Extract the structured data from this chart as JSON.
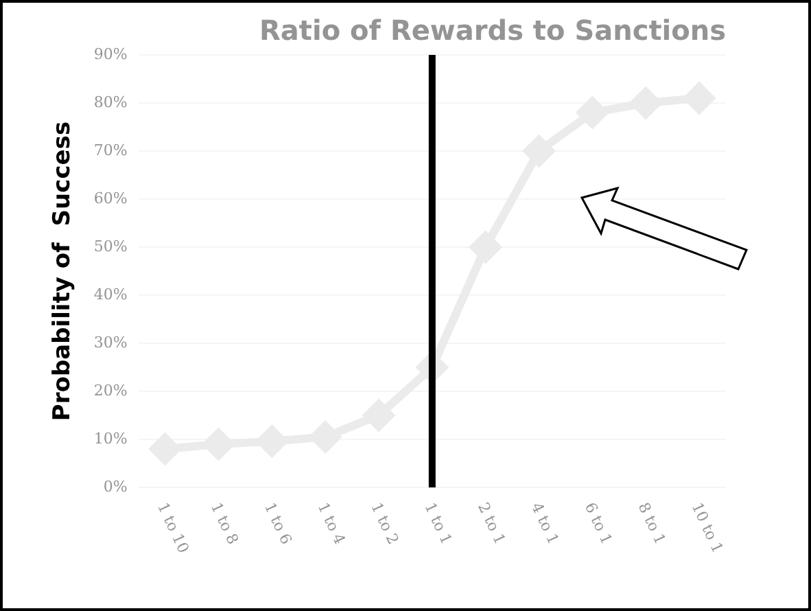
{
  "chart_data": {
    "type": "line",
    "title": "Ratio of Rewards to Sanctions",
    "ylabel": "Probability of  Success",
    "categories": [
      "1 to 10",
      "1 to 8",
      "1 to 6",
      "1 to 4",
      "1 to 2",
      "1 to 1",
      "2 to 1",
      "4 to 1",
      "6 to 1",
      "8 to 1",
      "10 to 1"
    ],
    "series": [
      {
        "color": "#ebebeb",
        "values": [
          8,
          9,
          9.6,
          10.5,
          15,
          25,
          50,
          70,
          78,
          80,
          81
        ]
      }
    ],
    "ylim": [
      0,
      90
    ],
    "yticks": [
      {
        "value": 0,
        "label": "0%"
      },
      {
        "value": 10,
        "label": "10%"
      },
      {
        "value": 20,
        "label": "20%"
      },
      {
        "value": 30,
        "label": "30%"
      },
      {
        "value": 40,
        "label": "40%"
      },
      {
        "value": 50,
        "label": "50%"
      },
      {
        "value": 60,
        "label": "60%"
      },
      {
        "value": 70,
        "label": "70%"
      },
      {
        "value": 80,
        "label": "80%"
      },
      {
        "value": 90,
        "label": "90%"
      }
    ],
    "ref_lines": [
      {
        "axis": "x",
        "value": "1 to 1",
        "color": "#000000"
      }
    ],
    "grid": "y",
    "legend": false,
    "marker": "diamond",
    "line_style": "solid"
  }
}
